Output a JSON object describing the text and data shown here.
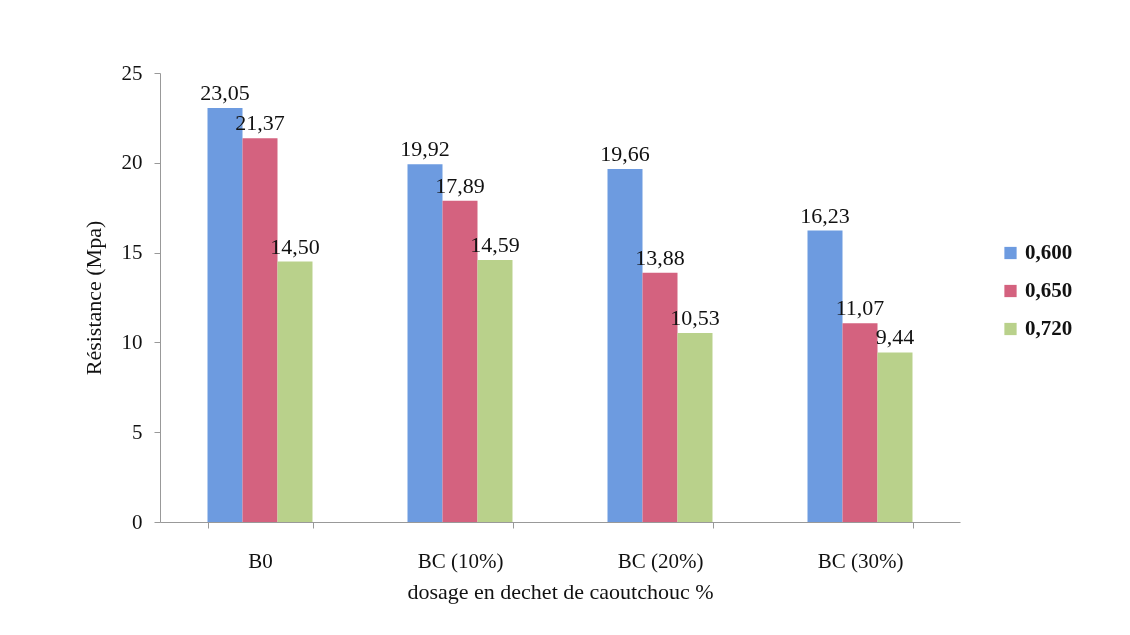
{
  "chart_data": {
    "type": "bar",
    "xlabel": "dosage en dechet de caoutchouc %",
    "ylabel": "Résistance (Mpa)",
    "categories": [
      "B0",
      "BC (10%)",
      "BC (20%)",
      "BC (30%)"
    ],
    "series": [
      {
        "name": "0,600",
        "color": "#6d9be0",
        "values": [
          23.05,
          19.92,
          19.66,
          16.23
        ],
        "value_labels": [
          "23,05",
          "19,92",
          "19,66",
          "16,23"
        ]
      },
      {
        "name": "0,650",
        "color": "#d4627f",
        "values": [
          21.37,
          17.89,
          13.88,
          11.07
        ],
        "value_labels": [
          "21,37",
          "17,89",
          "13,88",
          "11,07"
        ]
      },
      {
        "name": "0,720",
        "color": "#b9d18b",
        "values": [
          14.5,
          14.59,
          10.53,
          9.44
        ],
        "value_labels": [
          "14,50",
          "14,59",
          "10,53",
          "9,44"
        ]
      }
    ],
    "ylim": [
      0,
      25
    ],
    "yticks": [
      0,
      5,
      10,
      15,
      20,
      25
    ],
    "grid": false,
    "legend": "right"
  }
}
